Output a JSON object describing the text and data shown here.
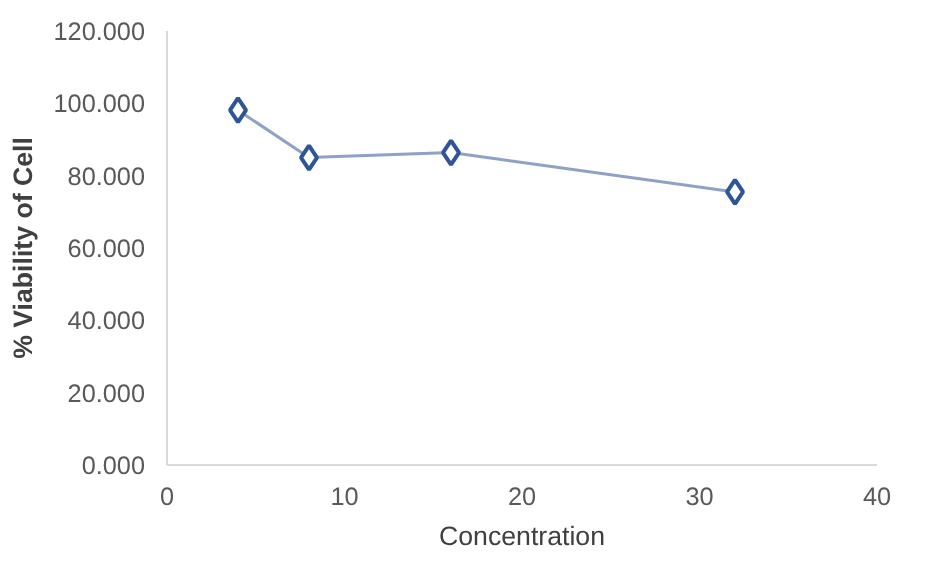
{
  "chart_data": {
    "type": "line",
    "xlabel": "Concentration",
    "ylabel": "% Viability of Cell",
    "x": [
      4,
      8,
      16,
      32
    ],
    "series": [
      {
        "color": "#2f5597",
        "values": [
          98.1,
          85.0,
          86.4,
          75.5
        ]
      }
    ],
    "xlim": [
      0,
      40
    ],
    "xticks": [
      0,
      10,
      20,
      30,
      40
    ],
    "ylim": [
      0,
      120
    ],
    "yticks": [
      {
        "value": 0,
        "label": "0.000"
      },
      {
        "value": 20,
        "label": "20.000"
      },
      {
        "value": 40,
        "label": "40.000"
      },
      {
        "value": 60,
        "label": "60.000"
      },
      {
        "value": 80,
        "label": "80.000"
      },
      {
        "value": 100,
        "label": "100.000"
      },
      {
        "value": 120,
        "label": "120.000"
      }
    ],
    "marker": "diamond",
    "grid": false
  }
}
